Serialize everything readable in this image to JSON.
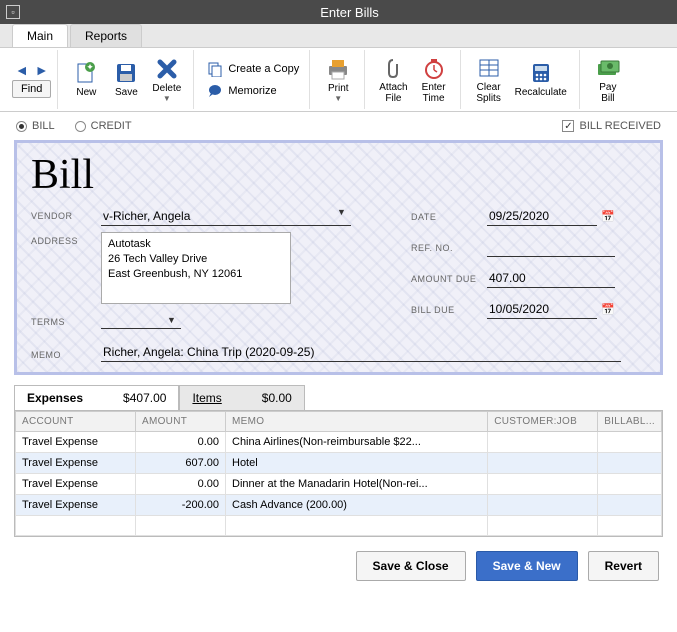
{
  "window": {
    "title": "Enter Bills"
  },
  "tabs": {
    "main": "Main",
    "reports": "Reports"
  },
  "toolbar": {
    "find": "Find",
    "new": "New",
    "save": "Save",
    "delete": "Delete",
    "create_copy": "Create a Copy",
    "memorize": "Memorize",
    "print": "Print",
    "attach_file": "Attach\nFile",
    "enter_time": "Enter\nTime",
    "clear_splits": "Clear\nSplits",
    "recalculate": "Recalculate",
    "pay_bill": "Pay\nBill"
  },
  "options": {
    "bill": "BILL",
    "credit": "CREDIT",
    "bill_received": "BILL RECEIVED",
    "bill_received_checked": "✓"
  },
  "bill": {
    "heading": "Bill",
    "labels": {
      "vendor": "VENDOR",
      "address": "ADDRESS",
      "terms": "TERMS",
      "memo": "MEMO",
      "date": "DATE",
      "ref_no": "REF. NO.",
      "amount_due": "AMOUNT DUE",
      "bill_due": "BILL DUE"
    },
    "vendor": "v-Richer, Angela",
    "address": "Autotask\n26 Tech Valley Drive\nEast Greenbush, NY 12061",
    "terms": "",
    "memo": "Richer, Angela: China Trip (2020-09-25)",
    "date": "09/25/2020",
    "ref_no": "",
    "amount_due": "407.00",
    "bill_due": "10/05/2020"
  },
  "exp_tabs": {
    "expenses_label": "Expenses",
    "expenses_amount": "$407.00",
    "items_label": "Items",
    "items_amount": "$0.00"
  },
  "table": {
    "headers": {
      "account": "ACCOUNT",
      "amount": "AMOUNT",
      "memo": "MEMO",
      "customer_job": "CUSTOMER:JOB",
      "billable": "BILLABL..."
    },
    "rows": [
      {
        "account": "Travel Expense",
        "amount": "0.00",
        "memo": "China Airlines(Non-reimbursable $22..."
      },
      {
        "account": "Travel Expense",
        "amount": "607.00",
        "memo": "Hotel"
      },
      {
        "account": "Travel Expense",
        "amount": "0.00",
        "memo": "Dinner at the Manadarin Hotel(Non-rei..."
      },
      {
        "account": "Travel Expense",
        "amount": "-200.00",
        "memo": "Cash Advance (200.00)"
      }
    ],
    "colors": {
      "row_bg": "#ffffff",
      "row_alt_bg": "#e8f0fb",
      "header_bg": "#f2f2f2",
      "border": "#cccccc"
    }
  },
  "footer": {
    "save_close": "Save & Close",
    "save_new": "Save & New",
    "revert": "Revert"
  },
  "colors": {
    "titlebar_bg": "#4a4a4a",
    "primary_btn": "#3b6fc9",
    "bill_border": "#b8c0e8",
    "icon_blue": "#2b5da8",
    "icon_green": "#4a9e4a",
    "icon_orange": "#e8a030",
    "icon_red": "#d04040"
  }
}
